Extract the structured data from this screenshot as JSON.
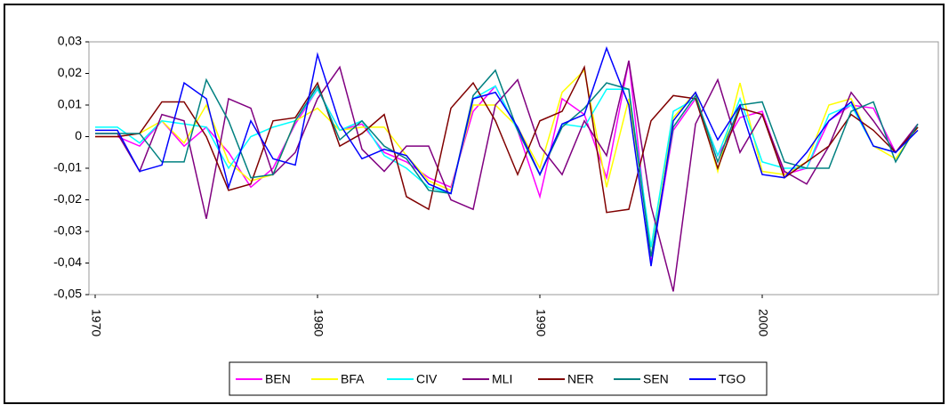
{
  "chart_data": {
    "type": "line",
    "x": [
      1970,
      1971,
      1972,
      1973,
      1974,
      1975,
      1976,
      1977,
      1978,
      1979,
      1980,
      1981,
      1982,
      1983,
      1984,
      1985,
      1986,
      1987,
      1988,
      1989,
      1990,
      1991,
      1992,
      1993,
      1994,
      1995,
      1996,
      1997,
      1998,
      1999,
      2000,
      2001,
      2002,
      2003,
      2004,
      2005,
      2006,
      2007
    ],
    "xlim": [
      1970,
      2008
    ],
    "xticks": [
      1970,
      1980,
      1990,
      2000
    ],
    "ylim": [
      -0.05,
      0.03
    ],
    "yticks": [
      {
        "value": -0.05,
        "label": "-0,05"
      },
      {
        "value": -0.04,
        "label": "-0,04"
      },
      {
        "value": -0.03,
        "label": "-0,03"
      },
      {
        "value": -0.02,
        "label": "-0,02"
      },
      {
        "value": -0.01,
        "label": "-0,01"
      },
      0,
      {
        "value": 0.01,
        "label": "0,01"
      },
      {
        "value": 0.02,
        "label": "0,02"
      },
      {
        "value": 0.03,
        "label": "0,03"
      }
    ],
    "series": [
      {
        "name": "BEN",
        "color": "#ff00ff",
        "values": [
          0,
          0,
          -0.003,
          0.005,
          -0.003,
          0.003,
          -0.005,
          -0.016,
          -0.01,
          0.004,
          0.015,
          0.002,
          0.004,
          -0.005,
          -0.008,
          -0.013,
          -0.016,
          0.008,
          0.016,
          0.002,
          -0.019,
          0.012,
          0.007,
          -0.013,
          0.024,
          -0.04,
          0.002,
          0.012,
          -0.006,
          0.006,
          0.008,
          -0.012,
          -0.01,
          0.005,
          0.01,
          0.009,
          -0.005,
          0.004
        ]
      },
      {
        "name": "BFA",
        "color": "#ffff00",
        "values": [
          0,
          0,
          0.001,
          0.005,
          -0.002,
          0.01,
          -0.008,
          -0.014,
          -0.012,
          0.005,
          0.009,
          0.002,
          0.003,
          0.003,
          -0.006,
          -0.014,
          -0.017,
          0.01,
          0.01,
          0.003,
          -0.01,
          0.014,
          0.021,
          -0.016,
          0.012,
          -0.035,
          0.006,
          0.014,
          -0.011,
          0.017,
          -0.011,
          -0.012,
          -0.008,
          0.01,
          0.012,
          -0.003,
          -0.007,
          0.003
        ]
      },
      {
        "name": "CIV",
        "color": "#00ffff",
        "values": [
          0.003,
          0.003,
          -0.002,
          0.005,
          0.004,
          0.003,
          -0.01,
          0,
          0.003,
          0.005,
          0.015,
          0.002,
          0.005,
          -0.006,
          -0.01,
          -0.016,
          -0.018,
          0.012,
          0.016,
          0.002,
          -0.012,
          0.004,
          0.003,
          0.015,
          0.015,
          -0.035,
          0.008,
          0.012,
          -0.006,
          0.012,
          -0.008,
          -0.01,
          -0.01,
          0.007,
          0.01,
          -0.003,
          -0.005,
          0.003
        ]
      },
      {
        "name": "MLI",
        "color": "#800080",
        "values": [
          0.001,
          0.001,
          -0.011,
          0.007,
          0.005,
          -0.026,
          0.012,
          0.009,
          -0.012,
          -0.005,
          0.012,
          0.022,
          -0.004,
          -0.011,
          -0.003,
          -0.003,
          -0.02,
          -0.023,
          0.01,
          0.018,
          -0.003,
          -0.012,
          0.005,
          -0.006,
          0.024,
          -0.022,
          -0.049,
          0.004,
          0.018,
          -0.005,
          0.007,
          -0.011,
          -0.015,
          -0.003,
          0.014,
          0.005,
          -0.005,
          0.004
        ]
      },
      {
        "name": "NER",
        "color": "#800000",
        "values": [
          0,
          0,
          0.001,
          0.011,
          0.011,
          0,
          -0.017,
          -0.015,
          0.005,
          0.006,
          0.017,
          -0.003,
          0.001,
          0.007,
          -0.019,
          -0.023,
          0.009,
          0.017,
          0.005,
          -0.012,
          0.005,
          0.008,
          0.022,
          -0.024,
          -0.023,
          0.005,
          0.013,
          0.012,
          -0.01,
          0.009,
          0.007,
          -0.013,
          -0.008,
          -0.003,
          0.007,
          0.002,
          -0.005,
          0.003
        ]
      },
      {
        "name": "SEN",
        "color": "#008080",
        "values": [
          0.001,
          0.001,
          0.001,
          -0.008,
          -0.008,
          0.018,
          0.005,
          -0.013,
          -0.012,
          0.005,
          0.016,
          -0.001,
          0.005,
          -0.003,
          -0.007,
          -0.017,
          -0.018,
          0.013,
          0.021,
          0.002,
          -0.012,
          0.003,
          0.009,
          0.017,
          0.015,
          -0.038,
          0.003,
          0.013,
          -0.008,
          0.01,
          0.011,
          -0.008,
          -0.01,
          -0.01,
          0.008,
          0.011,
          -0.008,
          0.004
        ]
      },
      {
        "name": "TGO",
        "color": "#0000ff",
        "values": [
          0.002,
          0.002,
          -0.011,
          -0.009,
          0.017,
          0.012,
          -0.016,
          0.005,
          -0.007,
          -0.009,
          0.026,
          0.004,
          -0.007,
          -0.004,
          -0.006,
          -0.015,
          -0.018,
          0.012,
          0.014,
          0.003,
          -0.012,
          0.004,
          0.007,
          0.028,
          0.01,
          -0.041,
          0.005,
          0.014,
          -0.001,
          0.01,
          -0.012,
          -0.013,
          -0.005,
          0.005,
          0.011,
          -0.003,
          -0.005,
          0.002
        ]
      }
    ]
  }
}
